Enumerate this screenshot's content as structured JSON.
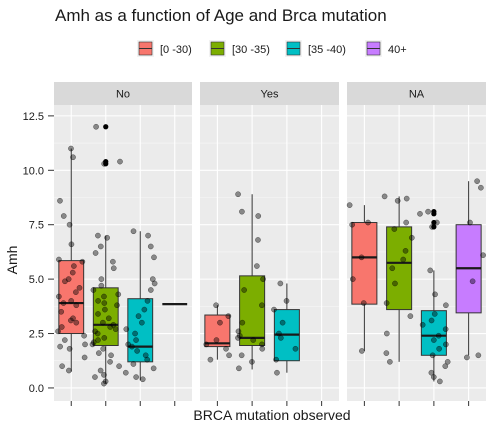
{
  "chart_data": {
    "type": "boxplot",
    "title": "Amh as a function of Age and Brca mutation",
    "xlabel": "BRCA mutation observed",
    "ylabel": "Amh",
    "ylim": [
      -0.6,
      13.0
    ],
    "yticks": [
      0.0,
      2.5,
      5.0,
      7.5,
      10.0,
      12.5
    ],
    "ytick_labels": [
      "0.0",
      "2.5",
      "5.0",
      "7.5",
      "10.0",
      "12.5"
    ],
    "legend": {
      "title": "",
      "position": "top",
      "entries": [
        {
          "label": "[0 -30)",
          "color": "#F8766D"
        },
        {
          "label": "[30 -35)",
          "color": "#7CAE00"
        },
        {
          "label": "[35 -40)",
          "color": "#00BFC4"
        },
        {
          "label": "40+",
          "color": "#C77CFF"
        }
      ]
    },
    "panels": [
      {
        "label": "No",
        "boxes": [
          {
            "group": "[0 -30)",
            "q1": 2.5,
            "median": 3.9,
            "q3": 5.85,
            "whisker_low": 0.75,
            "whisker_high": 11.0,
            "outliers": [],
            "points": [
              11.0,
              10.6,
              8.6,
              7.9,
              7.5,
              6.6,
              5.9,
              5.8,
              5.6,
              5.0,
              4.9,
              4.6,
              4.4,
              4.2,
              4.0,
              3.9,
              3.8,
              3.5,
              3.2,
              3.1,
              2.8,
              2.6,
              2.4,
              2.0,
              1.9,
              1.8,
              1.4,
              1.0,
              0.8,
              5.3,
              3.0,
              2.2
            ]
          },
          {
            "group": "[30 -35)",
            "q1": 1.95,
            "median": 2.9,
            "q3": 4.6,
            "whisker_low": 0.2,
            "whisker_high": 7.0,
            "outliers": [
              10.4,
              10.3,
              12.0
            ],
            "points": [
              12.0,
              10.4,
              10.3,
              7.0,
              6.9,
              6.5,
              6.2,
              5.5,
              5.0,
              4.7,
              4.5,
              4.3,
              4.0,
              3.8,
              3.6,
              3.4,
              3.2,
              3.0,
              2.9,
              2.8,
              2.6,
              2.5,
              2.3,
              2.1,
              2.0,
              1.8,
              1.5,
              1.2,
              1.0,
              0.8,
              0.6,
              0.3,
              0.2,
              2.7,
              3.9,
              4.2,
              1.6,
              2.2,
              5.8,
              0.5
            ]
          },
          {
            "group": "[35 -40)",
            "q1": 1.2,
            "median": 1.9,
            "q3": 4.1,
            "whisker_low": 0.35,
            "whisker_high": 7.2,
            "outliers": [],
            "points": [
              7.2,
              7.0,
              6.5,
              6.0,
              5.0,
              4.5,
              4.0,
              3.6,
              3.0,
              2.7,
              2.5,
              2.2,
              1.9,
              1.7,
              1.5,
              1.3,
              1.1,
              0.9,
              0.7,
              0.5,
              0.4,
              3.3,
              2.0,
              4.8
            ]
          },
          {
            "group": "40+",
            "q1": 3.85,
            "median": 3.85,
            "q3": 3.85,
            "whisker_low": 3.85,
            "whisker_high": 3.85,
            "outliers": [],
            "points": []
          }
        ]
      },
      {
        "label": "Yes",
        "boxes": [
          {
            "group": "[0 -30)",
            "q1": 1.9,
            "median": 2.05,
            "q3": 3.35,
            "whisker_low": 1.3,
            "whisker_high": 3.8,
            "outliers": [],
            "points": [
              3.8,
              3.3,
              3.0,
              2.2,
              2.0,
              1.8,
              1.5,
              1.3
            ]
          },
          {
            "group": "[30 -35)",
            "q1": 1.95,
            "median": 2.3,
            "q3": 5.15,
            "whisker_low": 0.85,
            "whisker_high": 8.9,
            "outliers": [],
            "points": [
              8.9,
              8.1,
              7.9,
              6.8,
              5.6,
              5.0,
              4.5,
              3.8,
              3.0,
              2.6,
              2.4,
              2.3,
              2.2,
              2.0,
              1.8,
              1.5,
              1.2,
              0.9
            ]
          },
          {
            "group": "[35 -40)",
            "q1": 1.25,
            "median": 2.45,
            "q3": 3.6,
            "whisker_low": 0.7,
            "whisker_high": 4.8,
            "outliers": [],
            "points": [
              4.8,
              4.0,
              3.6,
              3.0,
              2.5,
              2.3,
              1.8,
              1.3,
              0.7
            ]
          }
        ]
      },
      {
        "label": "NA",
        "boxes": [
          {
            "group": "[0 -30)",
            "q1": 3.85,
            "median": 6.0,
            "q3": 7.6,
            "whisker_low": 1.7,
            "whisker_high": 8.4,
            "outliers": [],
            "points": [
              8.4,
              7.6,
              7.5,
              6.0,
              5.0,
              3.9,
              1.7
            ]
          },
          {
            "group": "[30 -35)",
            "q1": 3.6,
            "median": 5.75,
            "q3": 7.4,
            "whisker_low": 1.2,
            "whisker_high": 8.8,
            "outliers": [],
            "points": [
              8.8,
              8.7,
              8.6,
              7.6,
              7.3,
              6.9,
              6.3,
              5.9,
              5.5,
              4.8,
              3.9,
              3.3,
              2.5,
              1.6,
              1.2
            ]
          },
          {
            "group": "[35 -40)",
            "q1": 1.5,
            "median": 2.4,
            "q3": 3.55,
            "whisker_low": 0.3,
            "whisker_high": 5.4,
            "outliers": [
              7.4,
              7.6,
              8.0,
              8.1
            ],
            "points": [
              8.1,
              8.0,
              7.6,
              7.4,
              5.4,
              4.3,
              3.8,
              3.4,
              3.1,
              2.9,
              2.7,
              2.4,
              2.2,
              2.0,
              1.8,
              1.5,
              1.2,
              1.0,
              0.7,
              0.5,
              0.3
            ]
          },
          {
            "group": "40+",
            "q1": 3.45,
            "median": 5.5,
            "q3": 7.5,
            "whisker_low": 1.5,
            "whisker_high": 9.5,
            "outliers": [],
            "points": [
              9.5,
              9.2,
              7.6,
              6.1,
              4.9,
              1.5,
              1.4
            ]
          }
        ]
      }
    ]
  }
}
